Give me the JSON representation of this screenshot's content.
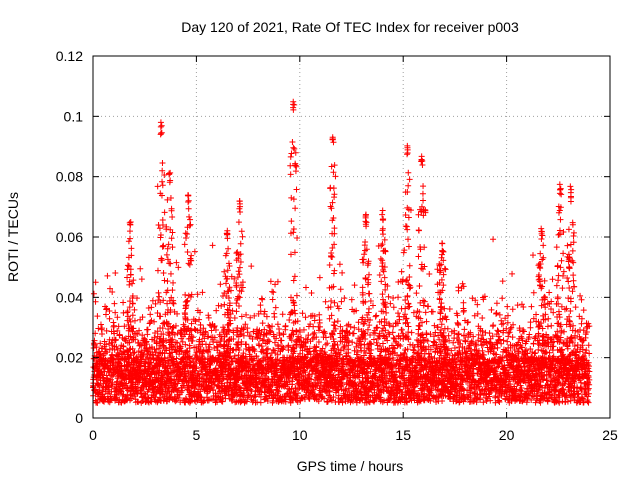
{
  "chart_data": {
    "type": "scatter",
    "title": "Day 120 of 2021, Rate Of TEC Index for receiver p003",
    "xlabel": "GPS time / hours",
    "ylabel": "ROTI / TECUs",
    "xlim": [
      0,
      25
    ],
    "ylim": [
      0,
      0.12
    ],
    "xticks": [
      0,
      5,
      10,
      15,
      20,
      25
    ],
    "yticks": [
      0,
      0.02,
      0.04,
      0.06,
      0.08,
      0.1,
      0.12
    ],
    "xtick_labels": [
      "0",
      "5",
      "10",
      "15",
      "20",
      "25"
    ],
    "ytick_labels": [
      "0",
      "0.02",
      "0.04",
      "0.06",
      "0.08",
      "0.1",
      "0.12"
    ],
    "grid": true,
    "marker": "+",
    "series_color": "#ff0000",
    "time_range_hours": [
      0,
      24
    ],
    "baseline_band": [
      0.005,
      0.02
    ],
    "peaks": [
      {
        "x": 3.3,
        "y": 0.098
      },
      {
        "x": 3.7,
        "y": 0.082
      },
      {
        "x": 1.8,
        "y": 0.065
      },
      {
        "x": 4.6,
        "y": 0.074
      },
      {
        "x": 6.5,
        "y": 0.063
      },
      {
        "x": 7.1,
        "y": 0.072
      },
      {
        "x": 9.7,
        "y": 0.106
      },
      {
        "x": 11.6,
        "y": 0.094
      },
      {
        "x": 13.2,
        "y": 0.068
      },
      {
        "x": 14.0,
        "y": 0.069
      },
      {
        "x": 15.2,
        "y": 0.091
      },
      {
        "x": 15.9,
        "y": 0.088
      },
      {
        "x": 16.9,
        "y": 0.059
      },
      {
        "x": 21.7,
        "y": 0.063
      },
      {
        "x": 22.6,
        "y": 0.078
      },
      {
        "x": 23.1,
        "y": 0.077
      }
    ]
  }
}
